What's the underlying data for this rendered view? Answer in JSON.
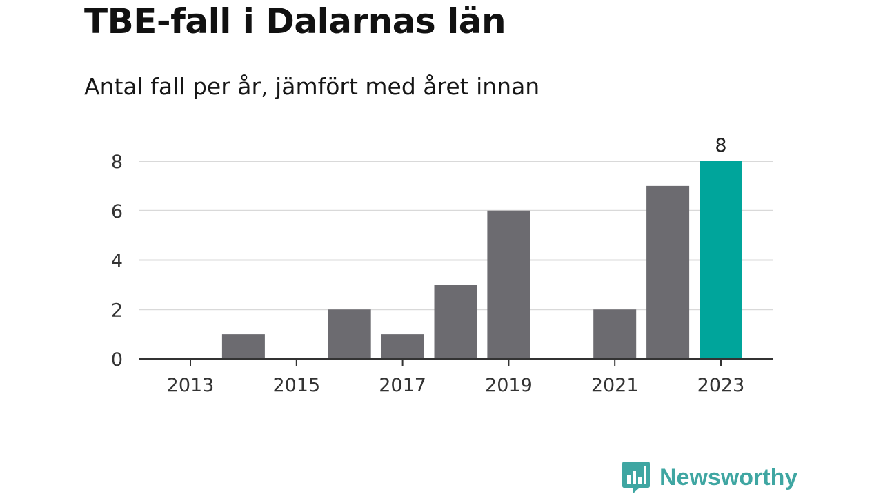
{
  "title": "TBE-fall i Dalarnas län",
  "subtitle": "Antal fall per år, jämfört med året innan",
  "brand": {
    "name": "Newsworthy",
    "icon": "newsworthy-logo-icon",
    "color": "#3fa6a2"
  },
  "colors": {
    "bar": "#6c6b70",
    "highlight": "#00a59b",
    "grid": "#d9d9d9",
    "axis": "#333333"
  },
  "chart_data": {
    "type": "bar",
    "title": "TBE-fall i Dalarnas län",
    "subtitle": "Antal fall per år, jämfört med året innan",
    "categories": [
      2013,
      2014,
      2015,
      2016,
      2017,
      2018,
      2019,
      2020,
      2021,
      2022,
      2023
    ],
    "values": [
      0,
      1,
      0,
      2,
      1,
      3,
      6,
      0,
      2,
      7,
      8
    ],
    "highlight_index": 10,
    "data_labels": [
      {
        "index": 10,
        "text": "8"
      }
    ],
    "x_tick_labels": [
      "2013",
      "2015",
      "2017",
      "2019",
      "2021",
      "2023"
    ],
    "y_tick_labels": [
      "0",
      "2",
      "4",
      "6",
      "8"
    ],
    "ylim": [
      0,
      8
    ],
    "xlabel": "",
    "ylabel": "",
    "grid": true
  }
}
